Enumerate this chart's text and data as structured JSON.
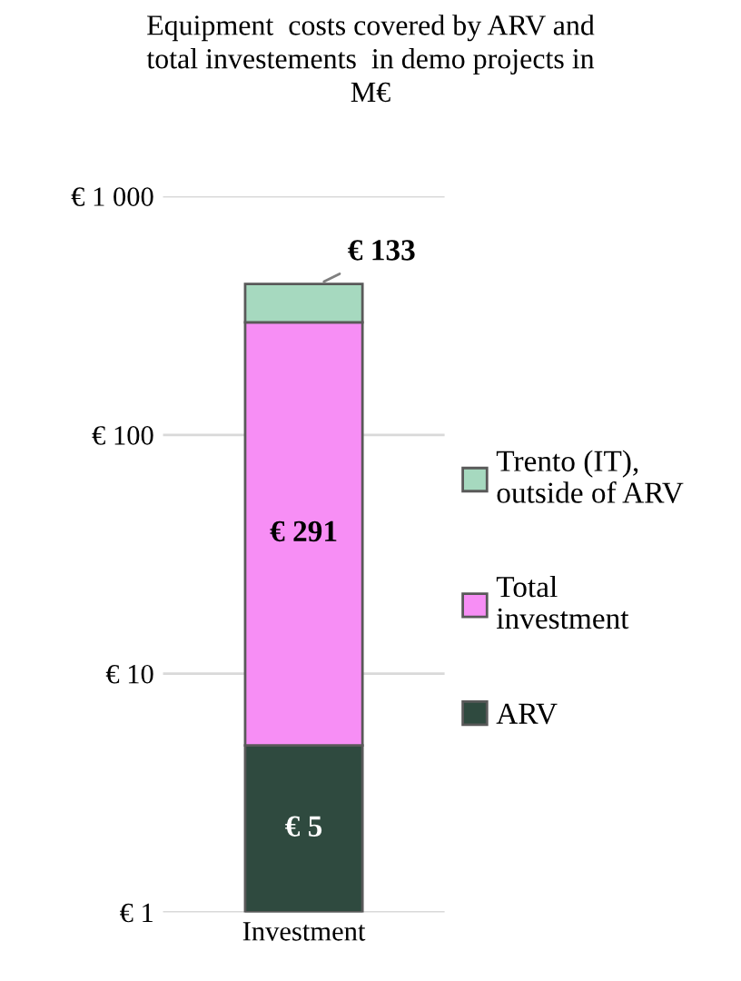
{
  "chart_data": {
    "type": "bar",
    "title": "Equipment  costs covered by ARV and\ntotal investements  in demo projects in\nM€",
    "categories": [
      "Investment"
    ],
    "stacked": true,
    "log": "y",
    "ylim": [
      1,
      1000
    ],
    "yticks": [
      {
        "value": 1,
        "label": "€ 1"
      },
      {
        "value": 10,
        "label": "€ 10"
      },
      {
        "value": 100,
        "label": "€ 100"
      },
      {
        "value": 1000,
        "label": "€ 1 000"
      }
    ],
    "grid": "y",
    "legend": "right",
    "series": [
      {
        "name": "ARV",
        "color": "#2f4a3f",
        "values": [
          5
        ],
        "value_labels": [
          "€ 5"
        ]
      },
      {
        "name": "Total\ninvestment",
        "color": "#f78ef5",
        "values": [
          291
        ],
        "value_labels": [
          "€ 291"
        ]
      },
      {
        "name": "Trento (IT),\noutside of ARV",
        "color": "#a6d9bf",
        "values": [
          133
        ],
        "value_labels": [
          "€ 133"
        ]
      }
    ]
  }
}
